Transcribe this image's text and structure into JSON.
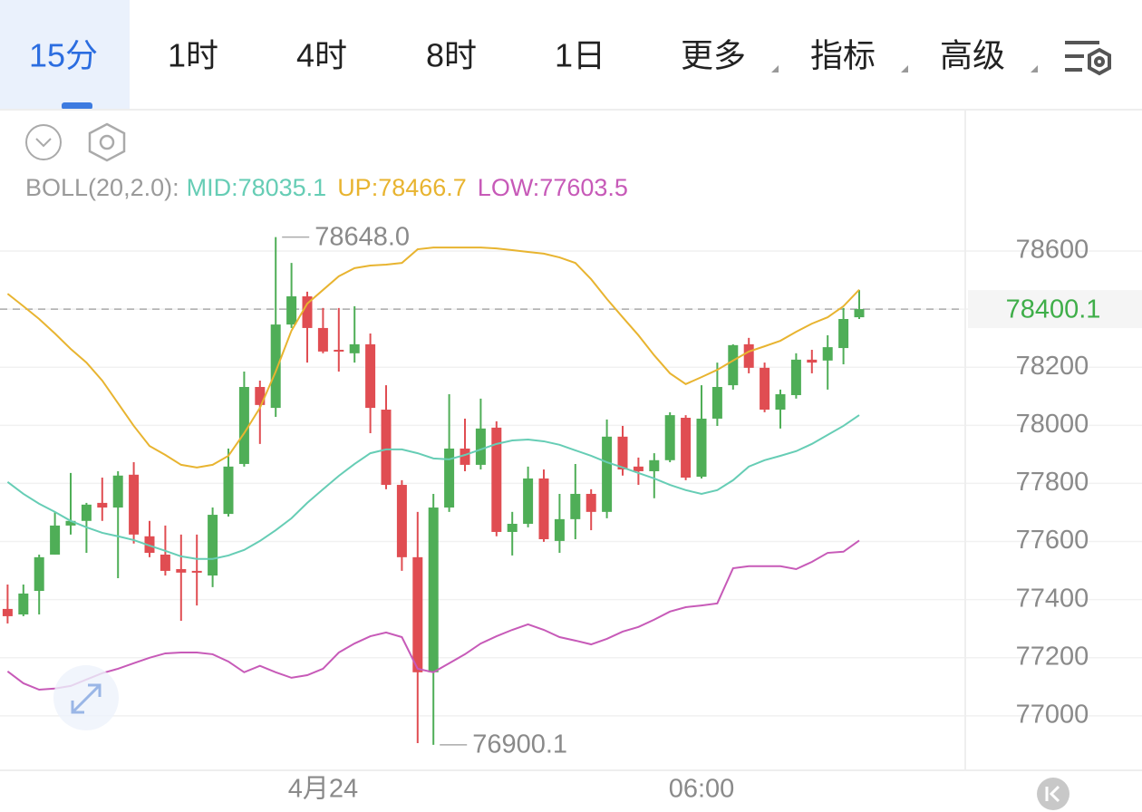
{
  "tabs": {
    "items": [
      "15分",
      "1时",
      "4时",
      "8时",
      "1日",
      "更多",
      "指标",
      "高级"
    ],
    "selected": 0
  },
  "chart_data": {
    "type": "candlestick",
    "indicator_label": "BOLL(20,2.0):",
    "categories": [
      null,
      null,
      null,
      null,
      null,
      null,
      null,
      null,
      null,
      null,
      null,
      null,
      null,
      null,
      null,
      null,
      null,
      null,
      null,
      null,
      "4月24",
      null,
      null,
      null,
      null,
      null,
      null,
      null,
      null,
      null,
      null,
      null,
      null,
      null,
      null,
      null,
      null,
      null,
      null,
      null,
      null,
      null,
      null,
      null,
      "06:00",
      null,
      null,
      null,
      null,
      null,
      null,
      null,
      null,
      null,
      null
    ],
    "open": [
      77368,
      77349,
      77430,
      77555,
      77655,
      77671,
      77733,
      77717,
      77830,
      77618,
      77555,
      77505,
      77499,
      77483,
      77695,
      77867,
      78132,
      78060,
      78347,
      78444,
      78335,
      78260,
      78248,
      78279,
      78054,
      77795,
      77546,
      77150,
      77717,
      77920,
      77864,
      77992,
      77633,
      77661,
      77817,
      77602,
      77677,
      77764,
      77702,
      77961,
      77858,
      77842,
      77880,
      78026,
      77823,
      78023,
      78138,
      78279,
      78198,
      78054,
      78104,
      78226,
      78223,
      78266,
      78372
    ],
    "high": [
      77452,
      77452,
      77555,
      77702,
      77836,
      77733,
      77820,
      77842,
      77873,
      77671,
      77655,
      77624,
      77624,
      77717,
      77920,
      78185,
      78154,
      78648,
      78559,
      78460,
      78404,
      78404,
      78410,
      78316,
      78138,
      77811,
      77702,
      77764,
      78107,
      78023,
      78092,
      78014,
      77702,
      77858,
      77848,
      77764,
      77867,
      77780,
      78020,
      77998,
      77889,
      77904,
      78045,
      78035,
      78138,
      78216,
      78279,
      78301,
      78216,
      78123,
      78248,
      78260,
      78310,
      78404,
      78466
    ],
    "low": [
      77318,
      77343,
      77349,
      77555,
      77624,
      77561,
      77671,
      77474,
      77593,
      77546,
      77483,
      77327,
      77380,
      77443,
      77686,
      77858,
      77936,
      78029,
      78335,
      78216,
      78248,
      78185,
      78216,
      77973,
      77780,
      77499,
      76906,
      76900.1,
      77702,
      77842,
      77848,
      77618,
      77552,
      77649,
      77599,
      77561,
      77608,
      77639,
      77680,
      77827,
      77795,
      77749,
      77873,
      77811,
      77817,
      77998,
      78123,
      78179,
      78045,
      77989,
      78092,
      78179,
      78123,
      78210,
      78366
    ],
    "close": [
      77343,
      77421,
      77546,
      77655,
      77671,
      77727,
      77717,
      77827,
      77624,
      77561,
      77499,
      77493,
      77493,
      77692,
      77858,
      78132,
      78070,
      78347,
      78444,
      78335,
      78254,
      78254,
      78279,
      78060,
      77795,
      77546,
      77150,
      77717,
      77920,
      77864,
      77989,
      77633,
      77661,
      77817,
      77608,
      77677,
      77764,
      77702,
      77961,
      77848,
      77842,
      77880,
      78035,
      77820,
      78023,
      78132,
      78276,
      78198,
      78054,
      78107,
      78226,
      78216,
      78269,
      78366,
      78400.1
    ],
    "up_color": "#4fae57",
    "down_color": "#e04d52",
    "series": [
      {
        "name": "MID",
        "legend_label": "MID:78035.1",
        "color": "#66cdb5",
        "values": [
          77805,
          77764,
          77730,
          77702,
          77671,
          77649,
          77630,
          77618,
          77605,
          77586,
          77568,
          77549,
          77540,
          77540,
          77552,
          77571,
          77602,
          77639,
          77680,
          77733,
          77780,
          77826,
          77867,
          77904,
          77917,
          77917,
          77904,
          77886,
          77883,
          77898,
          77917,
          77936,
          77948,
          77951,
          77945,
          77933,
          77914,
          77895,
          77873,
          77855,
          77836,
          77817,
          77795,
          77777,
          77764,
          77777,
          77811,
          77858,
          77880,
          77895,
          77911,
          77936,
          77967,
          77998,
          78035.1
        ]
      },
      {
        "name": "UP",
        "legend_label": "UP:78466.7",
        "color": "#e8b430",
        "values": [
          78453,
          78410,
          78366,
          78316,
          78263,
          78216,
          78154,
          78076,
          77998,
          77929,
          77898,
          77864,
          77855,
          77864,
          77895,
          77973,
          78060,
          78185,
          78326,
          78419,
          78466,
          78513,
          78541,
          78550,
          78553,
          78559,
          78606,
          78612,
          78612,
          78612,
          78612,
          78609,
          78603,
          78597,
          78591,
          78578,
          78559,
          78503,
          78435,
          78372,
          78310,
          78241,
          78179,
          78142,
          78166,
          78191,
          78223,
          78254,
          78272,
          78291,
          78322,
          78350,
          78372,
          78410,
          78466.7
        ]
      },
      {
        "name": "LOW",
        "legend_label": "LOW:77603.5",
        "color": "#c75ab8",
        "values": [
          77153,
          77112,
          77090,
          77094,
          77103,
          77125,
          77147,
          77162,
          77181,
          77200,
          77215,
          77218,
          77218,
          77212,
          77187,
          77150,
          77172,
          77150,
          77131,
          77140,
          77162,
          77218,
          77249,
          77274,
          77287,
          77271,
          77162,
          77150,
          77181,
          77212,
          77249,
          77274,
          77296,
          77315,
          77296,
          77271,
          77259,
          77246,
          77265,
          77290,
          77306,
          77331,
          77359,
          77374,
          77380,
          77387,
          77508,
          77515,
          77515,
          77515,
          77505,
          77530,
          77561,
          77565,
          77603.5
        ]
      }
    ],
    "annotations": [
      {
        "value": 78648,
        "label": "78648.0"
      },
      {
        "value": 76900.1,
        "label": "76900.1"
      }
    ],
    "last_price": 78400.1,
    "last_price_color": "#3fae49",
    "ylim": [
      76800,
      79100
    ],
    "yticks": [
      77000,
      77200,
      77400,
      77600,
      77800,
      78000,
      78200,
      78400,
      78600
    ],
    "grid": true
  }
}
